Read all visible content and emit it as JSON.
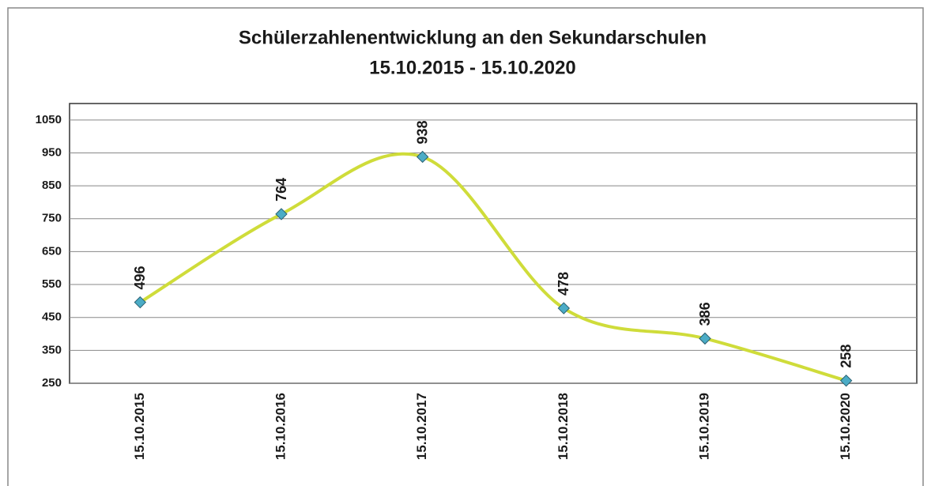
{
  "chart_data": {
    "type": "line",
    "title": "Schülerzahlenentwicklung an den Sekundarschulen",
    "subtitle": "15.10.2015 - 15.10.2020",
    "categories": [
      "15.10.2015",
      "15.10.2016",
      "15.10.2017",
      "15.10.2018",
      "15.10.2019",
      "15.10.2020"
    ],
    "values": [
      496,
      764,
      938,
      478,
      386,
      258
    ],
    "color": "#cfdc3a",
    "marker_color": "#4bacc6",
    "ylim": [
      250,
      1100
    ],
    "yticks": [
      250,
      350,
      450,
      550,
      650,
      750,
      850,
      950,
      1050
    ],
    "grid": true
  }
}
